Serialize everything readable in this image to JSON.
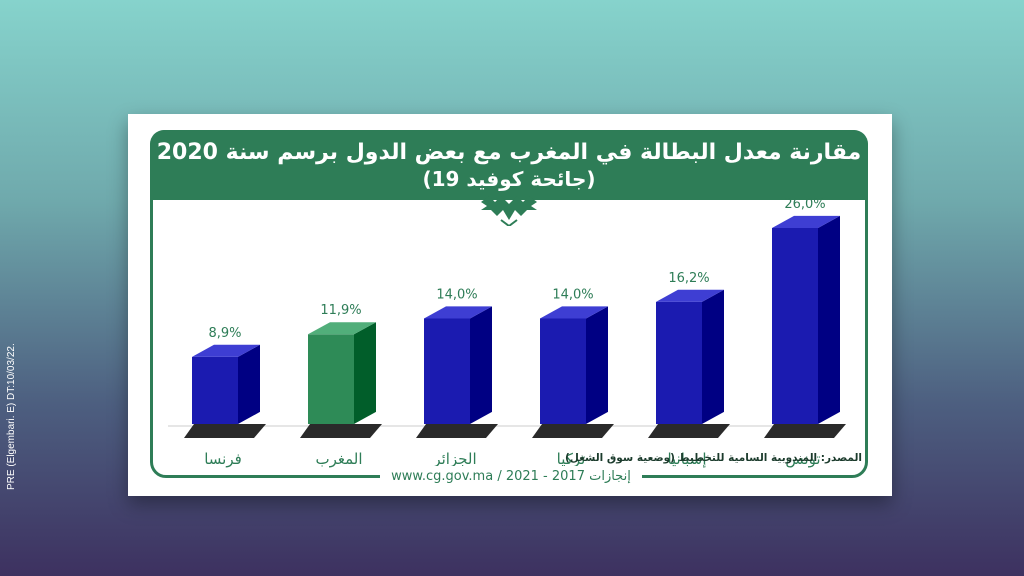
{
  "side_note": "PRE (Elgembari. E) DT:10/03/22.",
  "header": {
    "title_line1": "مقارنة معدل البطالة في المغرب مع بعض الدول برسم سنة 2020",
    "title_line2": "(جائحة كوفيد 19)"
  },
  "source": {
    "line1": "المصدر: المندوبية السامية للتخطيط (وضعية سوق الشغل)",
    "line2": ""
  },
  "footer": "www.cg.gov.ma / 2021 - 2017 إنجازات",
  "colors": {
    "primary_bar": "#1b1bb0",
    "highlight_bar": "#2e8b57",
    "frame_green": "#2e7d57"
  },
  "chart_data": {
    "type": "bar",
    "title": "مقارنة معدل البطالة في المغرب مع بعض الدول برسم سنة 2020",
    "subtitle": "(جائحة كوفيد 19)",
    "categories": [
      "فرنسا",
      "المغرب",
      "الجزائر",
      "تركيا",
      "إسبانيا",
      "تونس"
    ],
    "values": [
      8.9,
      11.9,
      14.0,
      14.0,
      16.2,
      26.0
    ],
    "value_labels": [
      "8,9%",
      "11,9%",
      "14,0%",
      "14,0%",
      "16,2%",
      "26,0%"
    ],
    "highlight_category": "المغرب",
    "ylim": [
      0,
      26
    ],
    "grid": false,
    "legend": "none",
    "xlabel": "",
    "ylabel": ""
  }
}
